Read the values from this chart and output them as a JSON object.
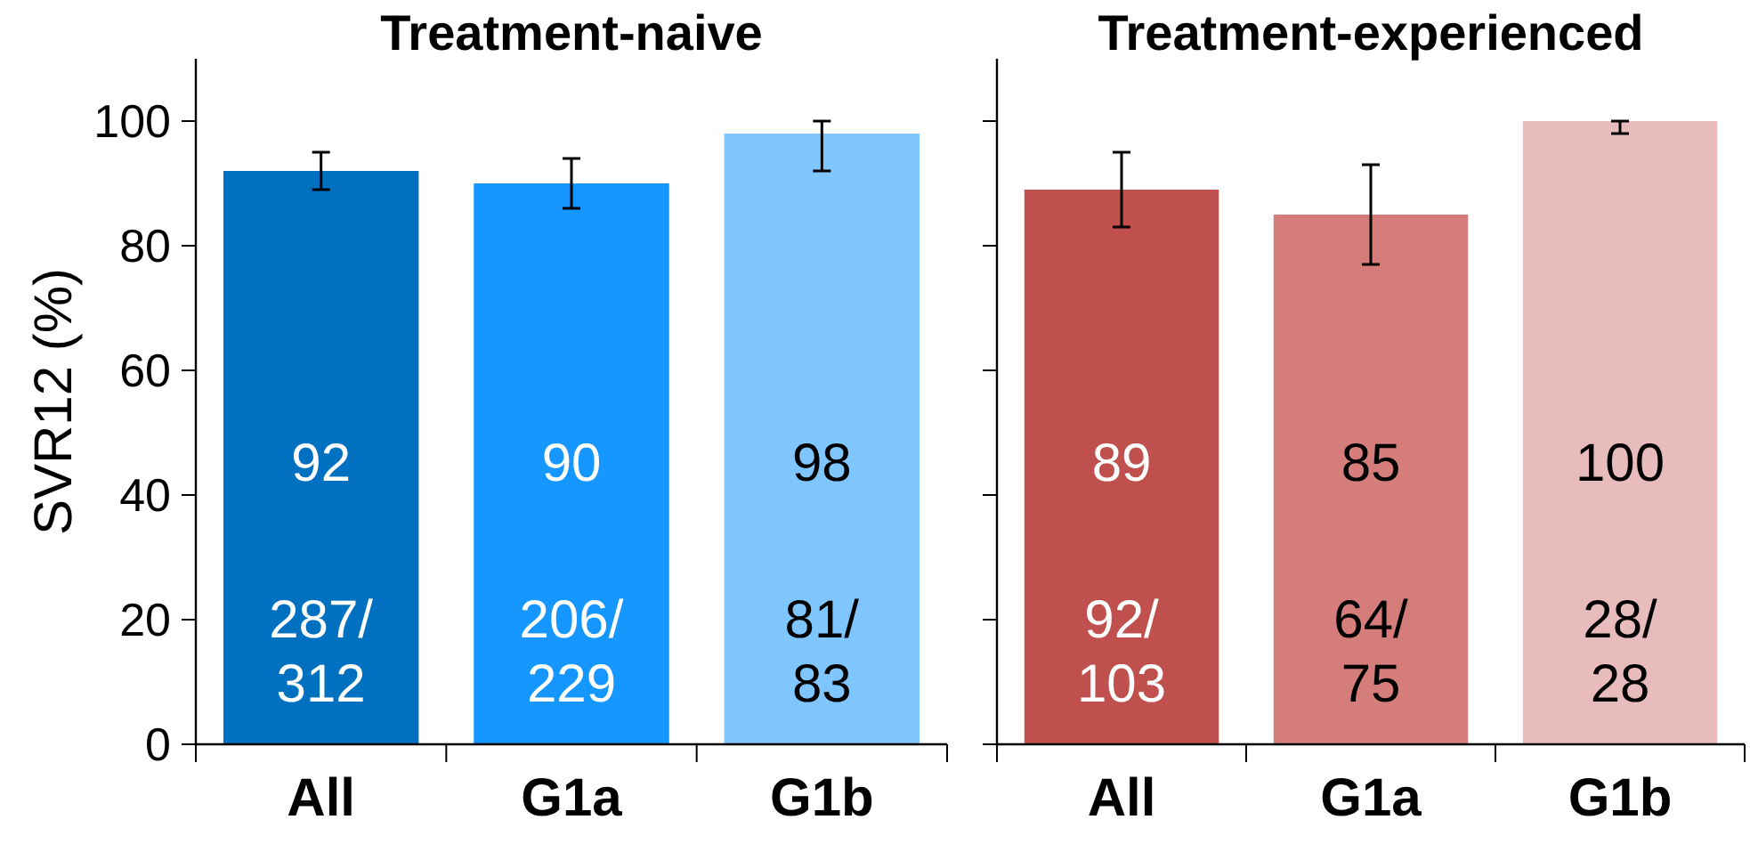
{
  "chart_data": [
    {
      "type": "bar",
      "title": "Treatment-naive",
      "ylabel": "SVR12 (%)",
      "categories": [
        "All",
        "G1a",
        "G1b"
      ],
      "values": [
        92,
        90,
        98
      ],
      "colors": [
        "#0070c0",
        "#1597ff",
        "#7fc6ff"
      ],
      "errors": [
        [
          89,
          95
        ],
        [
          86,
          94
        ],
        [
          92,
          100
        ]
      ],
      "ylim": [
        0,
        110
      ],
      "yticks": [
        0,
        20,
        40,
        60,
        80,
        100
      ],
      "data_labels": true,
      "grid": false,
      "annotations": [
        "287/312",
        "206/229",
        "81/83"
      ]
    },
    {
      "type": "bar",
      "title": "Treatment-experienced",
      "categories": [
        "All",
        "G1a",
        "G1b"
      ],
      "values": [
        89,
        85,
        100
      ],
      "colors": [
        "#c0504d",
        "#d47d7b",
        "#e8bcbc"
      ],
      "errors": [
        [
          83,
          95
        ],
        [
          77,
          93
        ],
        [
          98,
          100
        ]
      ],
      "ylim": [
        0,
        110
      ],
      "yticks": [
        0,
        20,
        40,
        60,
        80,
        100
      ],
      "tick_labels": "x",
      "data_labels": true,
      "grid": false,
      "annotations": [
        "92/103",
        "64/75",
        "28/28"
      ]
    }
  ]
}
